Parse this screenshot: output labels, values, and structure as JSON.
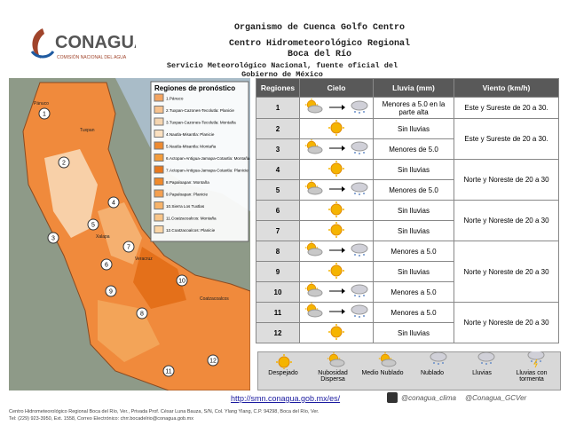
{
  "header": {
    "logo": "CONAGUA",
    "logo_sub": "COMISIÓN NACIONAL DEL AGUA",
    "org": "Organismo de Cuenca Golfo Centro",
    "center": "Centro Hidrometeorológico Regional",
    "place": "Boca del Río",
    "service": "Servicio Meteorológico Nacional, fuente oficial del Gobierno de México"
  },
  "map": {
    "legend_title": "Regiones de pronóstico",
    "regions": [
      {
        "label": "1.Pánuco",
        "color": "#f4a460"
      },
      {
        "label": "2.Tuxpan-Cazones-Tecolutla: Planicie",
        "color": "#f7c28e"
      },
      {
        "label": "3.Tuxpan-Cazones-Tecolutla: Montaña",
        "color": "#f5d5b0"
      },
      {
        "label": "4.Nautla-Misantla: Planicie",
        "color": "#fbe0c0"
      },
      {
        "label": "5.Nautla-Misantla: Montaña",
        "color": "#ee8a30"
      },
      {
        "label": "6.Actopan-Antigua-Jamapa-Cotaxtla: Montaña",
        "color": "#f39c3c"
      },
      {
        "label": "7.Actopan-Antigua-Jamapa-Cotaxtla: Planicie",
        "color": "#e8781e"
      },
      {
        "label": "8.Papaloapan: Montaña",
        "color": "#f08a2c"
      },
      {
        "label": "9.Papaloapan: Planicie",
        "color": "#f5a050"
      },
      {
        "label": "10.Sierra Los Tuxtlas",
        "color": "#f7b36a"
      },
      {
        "label": "11.Coatzacoalcos: Montaña",
        "color": "#f9c588"
      },
      {
        "label": "12.Coatzacoalcos: Planicie",
        "color": "#fbd5a6"
      }
    ],
    "markers": [
      "1",
      "2",
      "3",
      "4",
      "5",
      "6",
      "7",
      "8",
      "9",
      "10",
      "11",
      "12"
    ],
    "cities": [
      "Pánuco",
      "Tuxpan",
      "Xalapa",
      "Veracruz",
      "Coatzacoalcos"
    ]
  },
  "table": {
    "headers": [
      "Regiones",
      "Cielo",
      "Lluvia (mm)",
      "Viento (km/h)"
    ],
    "rows": [
      [
        "1",
        "Menores a 5.0 en la parte alta"
      ],
      [
        "2",
        "Sin lluvias"
      ],
      [
        "3",
        "Menores de 5.0"
      ],
      [
        "4",
        "Sin lluvias"
      ],
      [
        "5",
        "Menores de 5.0"
      ],
      [
        "6",
        "Sin lluvias"
      ],
      [
        "7",
        "Sin lluvias"
      ],
      [
        "8",
        "Menores a 5.0"
      ],
      [
        "9",
        "Sin lluvias"
      ],
      [
        "10",
        "Menores a 5.0"
      ],
      [
        "11",
        "Menores a 5.0"
      ],
      [
        "12",
        "Sin lluvias"
      ]
    ],
    "wind": [
      "Este y Sureste de 20 a 30.",
      "Este y Sureste de 20 a 30.",
      "Norte y Noreste de 20 a 30",
      "Norte y Noreste de 20 a 30",
      "Norte y Noreste de 20 a 30",
      "Norte y Noreste de 20 a 30"
    ]
  },
  "legend": [
    "Despejado",
    "Nubosidad Dispersa",
    "Medio Nublado",
    "Nublado",
    "Lluvias",
    "Lluvias con tormenta"
  ],
  "footer": {
    "url": "http://smn.conagua.gob.mx/es/",
    "social1": "@conagua_clima",
    "social2": "@Conagua_GCVer",
    "address": "Centro Hidrometeorológico Regional Boca del Río, Ver., Privada Prof. César Luna Bauza, S/N, Col. Ylang Ylang, C.P. 94298, Boca del Río, Ver.",
    "contact": "Tel: (229) 923-3950, Ext. 1558, Correo Electrónico: chrr.bocadelrio@conagua.gob.mx"
  }
}
